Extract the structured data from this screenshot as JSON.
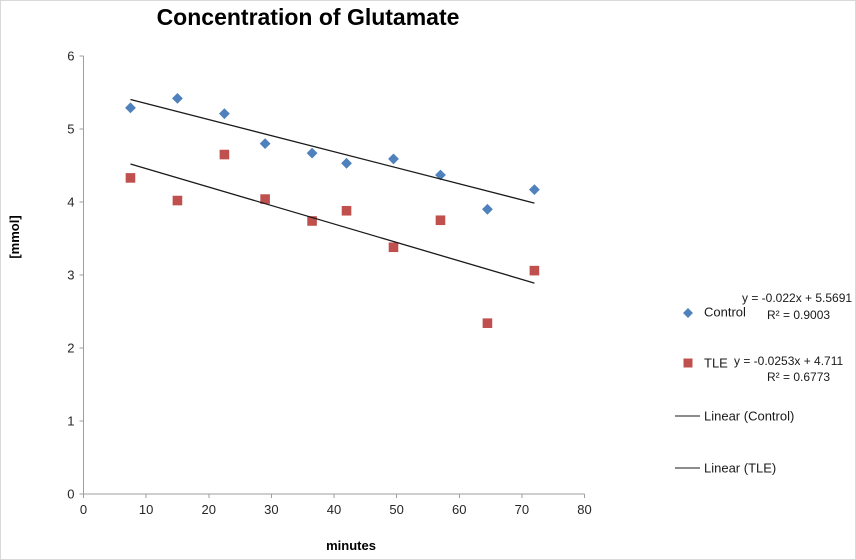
{
  "chart": {
    "title": "Concentration of Glutamate",
    "x_axis_title": "minutes",
    "y_axis_title": "[mmol]"
  },
  "chart_data": {
    "type": "scatter",
    "title": "Concentration of Glutamate",
    "xlabel": "minutes",
    "ylabel": "[mmol]",
    "xlim": [
      0,
      80
    ],
    "ylim": [
      0,
      6
    ],
    "x_ticks": [
      0,
      10,
      20,
      30,
      40,
      50,
      60,
      70,
      80
    ],
    "y_ticks": [
      0,
      1,
      2,
      3,
      4,
      5,
      6
    ],
    "grid": false,
    "legend_position": "right",
    "x": [
      7.5,
      15,
      22.5,
      29,
      36.5,
      42,
      49.5,
      57,
      64.5,
      72
    ],
    "series": [
      {
        "name": "Control",
        "marker": "diamond",
        "color": "#4F81BD",
        "values": [
          5.29,
          5.42,
          5.21,
          4.8,
          4.67,
          4.53,
          4.59,
          4.37,
          3.9,
          4.17
        ]
      },
      {
        "name": "TLE",
        "marker": "square",
        "color": "#C0504D",
        "values": [
          4.33,
          4.02,
          4.65,
          4.04,
          3.74,
          3.88,
          3.38,
          3.75,
          2.34,
          3.06
        ]
      }
    ],
    "trendlines": [
      {
        "name": "Linear (Control)",
        "slope": -0.022,
        "intercept": 5.5691,
        "x_start": 7.5,
        "x_end": 72,
        "equation": "y = -0.022x + 5.5691",
        "r_squared": "R² = 0.9003"
      },
      {
        "name": "Linear (TLE)",
        "slope": -0.0253,
        "intercept": 4.711,
        "x_start": 7.5,
        "x_end": 72,
        "equation": "y = -0.0253x + 4.711",
        "r_squared": "R² = 0.6773"
      }
    ]
  },
  "legend": {
    "control": {
      "label": "Control",
      "eq_line1": "y = -0.022x + 5.5691",
      "eq_line2": "R² = 0.9003"
    },
    "tle": {
      "label": "TLE",
      "eq_line1": "y = -0.0253x + 4.711",
      "eq_line2": "R² = 0.6773"
    },
    "linear_control": "Linear (Control)",
    "linear_tle": "Linear (TLE)"
  },
  "colors": {
    "control": "#4F81BD",
    "tle": "#C0504D",
    "trendline": "#1A1A1A",
    "axis": "#9E9E9E",
    "tick_text": "#262626"
  }
}
